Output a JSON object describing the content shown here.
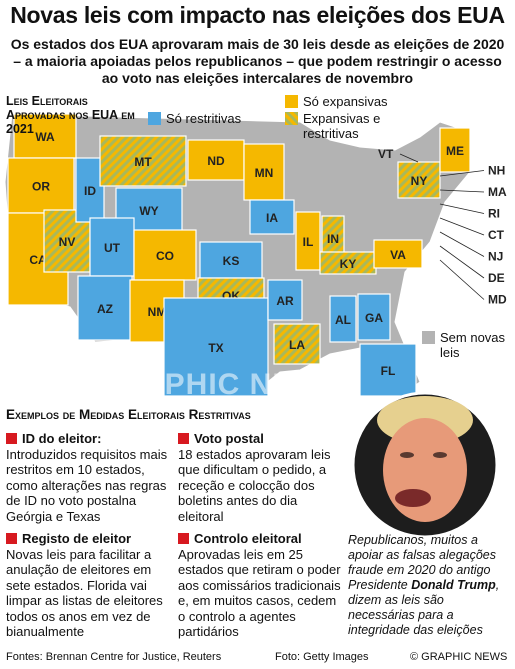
{
  "header": {
    "title": "Novas leis com impacto nas eleições dos EUA",
    "subtitle": "Os estados dos EUA aprovaram mais de 30 leis desde as eleições de 2020 – a maioria apoiadas pelos republicanos – que podem restringir o acesso ao voto nas eleições intercalares de novembro"
  },
  "map": {
    "title": "Leis Eleitorais Aprovadas nos EUA em 2021",
    "legend": [
      {
        "label": "Só expansivas",
        "color": "#f5b800"
      },
      {
        "label": "Só restritivas",
        "color": "#4ea6e0"
      },
      {
        "label": "Expansivas e restritivas",
        "color": "hatch"
      },
      {
        "label": "Sem novas leis",
        "color": "#b3b3b3"
      }
    ],
    "states": [
      {
        "code": "WA",
        "category": 0
      },
      {
        "code": "OR",
        "category": 0
      },
      {
        "code": "CA",
        "category": 0
      },
      {
        "code": "NV",
        "category": 2
      },
      {
        "code": "ID",
        "category": 1
      },
      {
        "code": "MT",
        "category": 2
      },
      {
        "code": "WY",
        "category": 1
      },
      {
        "code": "UT",
        "category": 1
      },
      {
        "code": "AZ",
        "category": 1
      },
      {
        "code": "CO",
        "category": 0
      },
      {
        "code": "NM",
        "category": 0
      },
      {
        "code": "ND",
        "category": 0
      },
      {
        "code": "MN",
        "category": 0
      },
      {
        "code": "IA",
        "category": 1
      },
      {
        "code": "KS",
        "category": 1
      },
      {
        "code": "OK",
        "category": 2
      },
      {
        "code": "TX",
        "category": 1
      },
      {
        "code": "AR",
        "category": 1
      },
      {
        "code": "LA",
        "category": 2
      },
      {
        "code": "IL",
        "category": 0
      },
      {
        "code": "IN",
        "category": 2
      },
      {
        "code": "KY",
        "category": 2
      },
      {
        "code": "AL",
        "category": 1
      },
      {
        "code": "GA",
        "category": 1
      },
      {
        "code": "FL",
        "category": 1
      },
      {
        "code": "VA",
        "category": 0
      },
      {
        "code": "NY",
        "category": 2
      },
      {
        "code": "ME",
        "category": 0
      }
    ],
    "small_states": [
      "VT",
      "NH",
      "MA",
      "RI",
      "CT",
      "NJ",
      "DE",
      "MD"
    ]
  },
  "watermark": "GRAPHIC NEWS",
  "examples": {
    "title": "Exemplos de Medidas Eleitorais Restritivas",
    "items": [
      {
        "heading": "ID do eleitor:",
        "body": "Introduzidos requisitos mais restritos em 10 estados, como alterações nas regras de ID no voto postalna Geórgia e Texas"
      },
      {
        "heading": "Voto postal",
        "body": "18 estados aprovaram leis que dificultam o pedido, a receção e colocção dos boletins antes do dia eleitoral"
      },
      {
        "heading": "Registo de eleitor",
        "body": "Novas leis para facilitar a anulação de eleitores em sete estados. Florida vai limpar as listas de eleitores todos os anos em vez de bianualmente"
      },
      {
        "heading": "Controlo eleitoral",
        "body": "Aprovadas leis em 25 estados que retiram o poder aos comissários tradicionais e, em muitos casos, cedem o controlo a agentes partidários"
      }
    ]
  },
  "caption": [
    "Republicanos, muitos a apoiar as falsas alegações fraude em 2020 do antigo Presidente ",
    "Donald Trump",
    ", dizem as leis são necessárias para a integridade das eleições"
  ],
  "footer": {
    "source": "Fontes: Brennan Centre for Justice, Reuters",
    "photo": "Foto: Getty Images",
    "credit": "© GRAPHIC NEWS"
  }
}
